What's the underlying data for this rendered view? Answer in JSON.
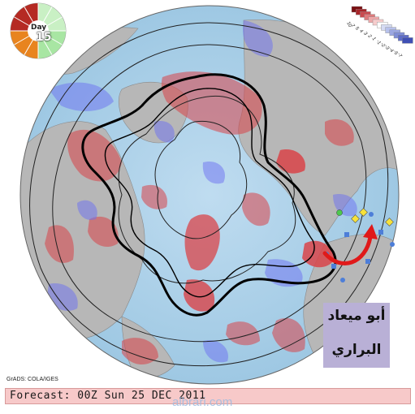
{
  "map": {
    "credit": "GrADS: COLA/IGES",
    "forecast": "Forecast: 00Z Sun 25 DEC 2011",
    "watermark": "albrari.com",
    "day_label": "Day",
    "day_number": "15",
    "overlay_label_line1": "أبو ميعاد",
    "overlay_label_line2": "البراري"
  },
  "legend": {
    "scale_labels": [
      "10",
      "7",
      "5",
      "4",
      "3",
      "2",
      "1",
      "-1",
      "-2",
      "-3",
      "-4",
      "-5",
      "-7"
    ],
    "scale_colors": [
      "#7a0f12",
      "#a8262a",
      "#c94a4e",
      "#de7a7c",
      "#eea7a8",
      "#f6cccc",
      "#ffffff",
      "#d6dcf4",
      "#b7c1ec",
      "#9ba7e2",
      "#7f8dd6",
      "#5f6dc8",
      "#3f4fb4"
    ]
  },
  "colors": {
    "ocean": "#a9cfe8",
    "land": "#b9b9b9",
    "positive_anomaly": "#d4363b",
    "negative_anomaly": "#6a6ff0",
    "contour": "#111111"
  }
}
